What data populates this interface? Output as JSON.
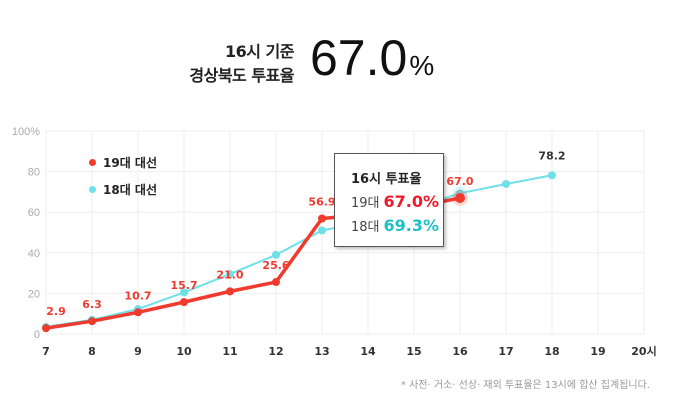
{
  "header": {
    "line1": "16시 기준",
    "line2": "경상북도 투표율",
    "value": "67.0",
    "unit": "%"
  },
  "legend": [
    {
      "label": "19대 대선",
      "color": "#f03a2e"
    },
    {
      "label": "18대 대선",
      "color": "#6fe0e8"
    }
  ],
  "tooltip": {
    "title": "16시 투표율",
    "rows": [
      {
        "label": "19대",
        "value": "67.0%",
        "color": "#f0192b"
      },
      {
        "label": "18대",
        "value": "69.3%",
        "color": "#1fbfc6"
      }
    ]
  },
  "footnote": "* 사전· 거소· 선상· 재외 투표율은 13시에 합산 집계됩니다.",
  "chart_data": {
    "type": "line",
    "title": "16시 기준 경상북도 투표율 67.0%",
    "xlabel": "",
    "ylabel": "",
    "x": [
      7,
      8,
      9,
      10,
      11,
      12,
      13,
      14,
      15,
      16,
      17,
      18,
      19,
      20
    ],
    "x_tick_labels": [
      "7",
      "8",
      "9",
      "10",
      "11",
      "12",
      "13",
      "14",
      "15",
      "16",
      "17",
      "18",
      "19",
      "20시"
    ],
    "y_tick_labels": [
      "0",
      "20",
      "40",
      "60",
      "80",
      "100%"
    ],
    "ylim": [
      0,
      100
    ],
    "grid": true,
    "legend_position": "upper-left",
    "series": [
      {
        "name": "19대 대선",
        "color": "#f03a2e",
        "values": [
          2.9,
          6.3,
          10.7,
          15.7,
          21.0,
          25.6,
          56.9,
          59.0,
          62.5,
          67.0,
          null,
          null,
          null,
          null
        ],
        "data_labels": [
          "2.9",
          "6.3",
          "10.7",
          "15.7",
          "21.0",
          "25.6",
          "56.9",
          null,
          null,
          "67.0",
          null,
          null,
          null,
          null
        ]
      },
      {
        "name": "18대 대선",
        "color": "#6fe0e8",
        "values": [
          3.5,
          7.0,
          12.3,
          20.5,
          29.5,
          39.0,
          51.0,
          55.5,
          62.0,
          69.3,
          73.9,
          78.2,
          null,
          null
        ],
        "data_labels": [
          null,
          null,
          null,
          null,
          null,
          null,
          null,
          null,
          null,
          null,
          null,
          "78.2",
          null,
          null
        ]
      }
    ]
  }
}
